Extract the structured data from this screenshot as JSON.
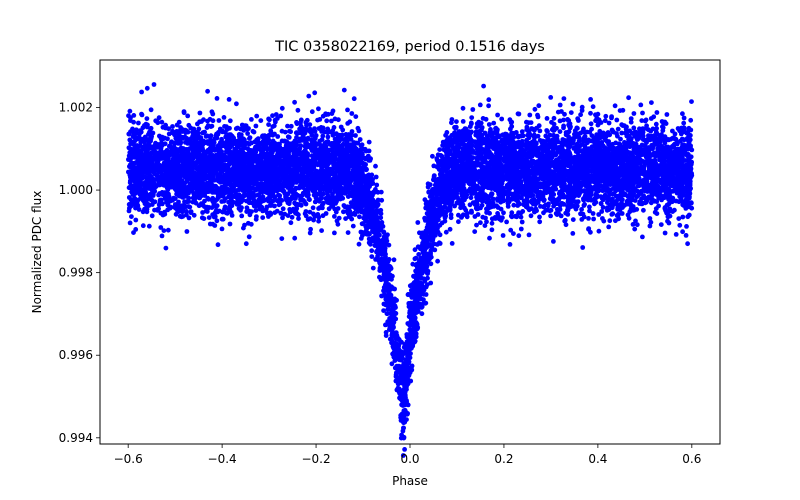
{
  "chart_data": {
    "type": "scatter",
    "title": "TIC 0358022169, period 0.1516 days",
    "xlabel": "Phase",
    "ylabel": "Normalized PDC flux",
    "xlim": [
      -0.66,
      0.66
    ],
    "ylim": [
      0.99385,
      1.00315
    ],
    "grid": false,
    "legend": "none",
    "marker_color": "#0000ff",
    "xticks": [
      -0.6,
      -0.4,
      -0.2,
      0.0,
      0.2,
      0.4,
      0.6
    ],
    "xtick_labels": [
      "−0.6",
      "−0.4",
      "−0.2",
      "0.0",
      "0.2",
      "0.4",
      "0.6"
    ],
    "yticks": [
      0.994,
      0.996,
      0.998,
      1.0,
      1.002
    ],
    "ytick_labels": [
      "0.994",
      "0.996",
      "0.998",
      "1.000",
      "1.002"
    ],
    "series": [
      {
        "x_range": [
          -0.6,
          0.6
        ],
        "baseline": 1.0005,
        "scatter_sigma": 0.00055,
        "transit": {
          "center": -0.015,
          "depth": 0.0056,
          "half_width": 0.12
        }
      }
    ]
  }
}
